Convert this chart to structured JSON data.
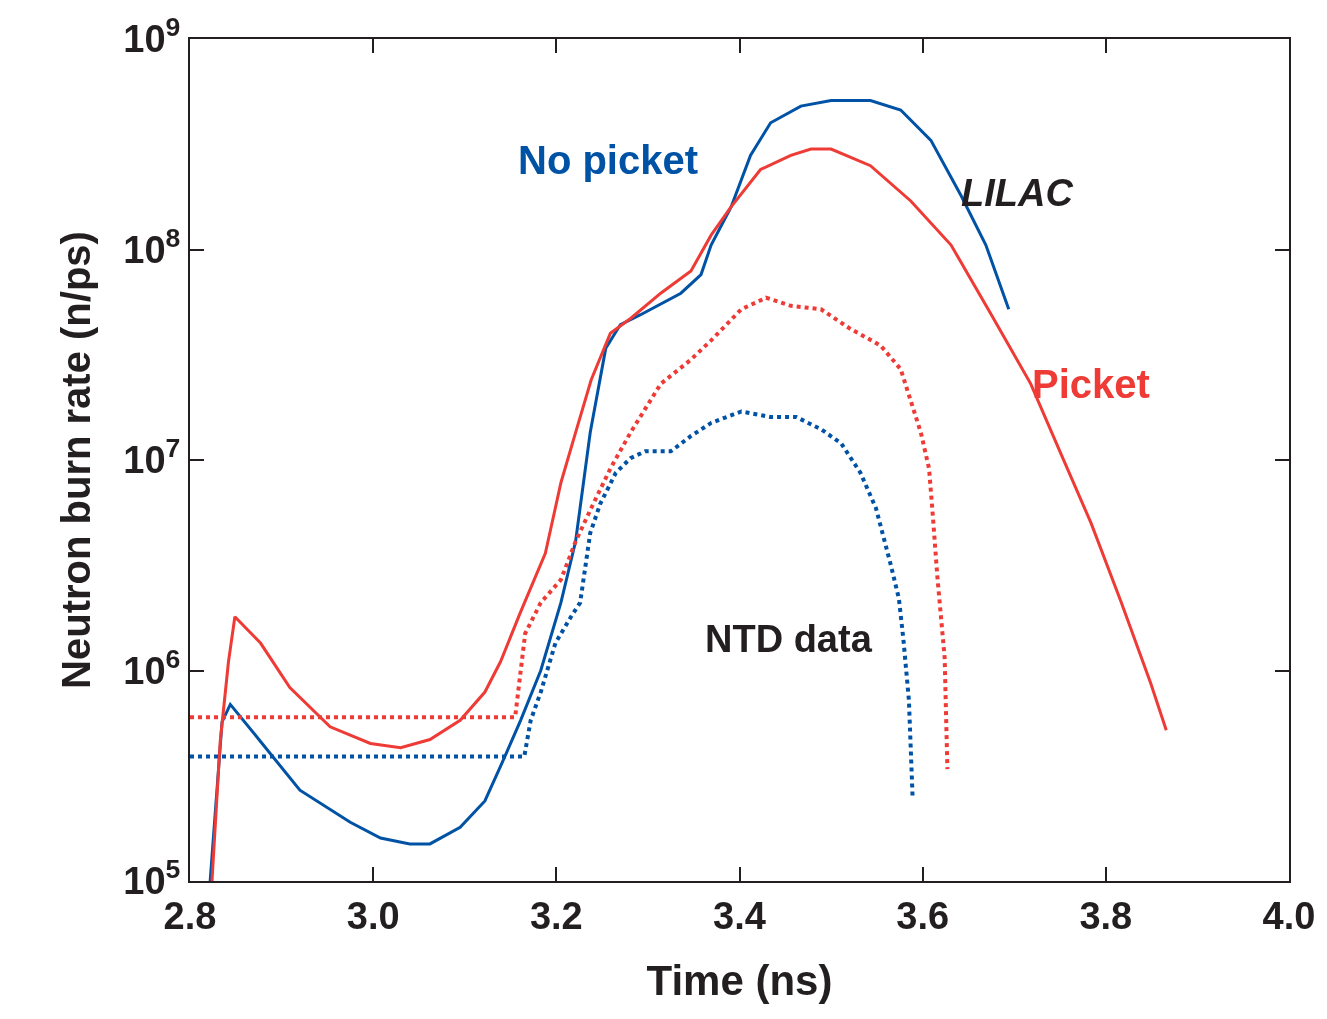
{
  "chart_data": {
    "type": "line",
    "xlabel": "Time (ns)",
    "ylabel": "Neutron burn rate (n/ps)",
    "log": "y",
    "legend": false,
    "xlim": [
      2.8,
      4.0
    ],
    "ylim": [
      100000,
      1000000000
    ],
    "xticks": [
      2.8,
      {
        "value": 3.0,
        "label": "3.0"
      },
      3.2,
      3.4,
      3.6,
      3.8,
      {
        "value": 4.0,
        "label": "4.0"
      }
    ],
    "yticks": [
      {
        "value": 100000,
        "label": "10$^{5}$"
      },
      {
        "value": 1000000,
        "label": "10$^{6}$"
      },
      {
        "value": 10000000,
        "label": "10$^{7}$"
      },
      {
        "value": 100000000,
        "label": "10$^{8}$"
      },
      {
        "value": 1000000000,
        "label": "10$^{9}$"
      }
    ],
    "annotations": [
      "LILAC",
      "NTD data"
    ],
    "series": [
      {
        "name": "No picket",
        "color": "#0052a5",
        "line_style": "solid",
        "x": [
          2.822,
          2.835,
          2.844,
          2.877,
          2.92,
          2.975,
          3.008,
          3.04,
          3.062,
          3.095,
          3.122,
          3.139,
          3.161,
          3.183,
          3.205,
          3.221,
          3.237,
          3.254,
          3.27,
          3.292,
          3.336,
          3.358,
          3.369,
          3.391,
          3.412,
          3.434,
          3.467,
          3.5,
          3.543,
          3.576,
          3.609,
          3.642,
          3.669,
          3.694
        ],
        "values": [
          100000,
          570000,
          690000,
          460000,
          270000,
          190000,
          160000,
          150000,
          150000,
          180000,
          240000,
          350000,
          580000,
          1000000,
          2100000,
          4100000,
          13500000,
          34000000,
          44000000,
          49000000,
          62000000,
          76000000,
          105000000,
          160000000,
          280000000,
          400000000,
          480000000,
          510000000,
          510000000,
          460000000,
          330000000,
          180000000,
          105000000,
          52000000
        ]
      },
      {
        "name": "Picket",
        "color": "#ee3b36",
        "line_style": "solid",
        "x": [
          2.824,
          2.833,
          2.842,
          2.849,
          2.877,
          2.909,
          2.953,
          2.997,
          3.03,
          3.062,
          3.095,
          3.122,
          3.139,
          3.161,
          3.188,
          3.205,
          3.221,
          3.238,
          3.259,
          3.281,
          3.314,
          3.347,
          3.369,
          3.391,
          3.423,
          3.456,
          3.478,
          3.5,
          3.543,
          3.587,
          3.631,
          3.675,
          3.718,
          3.751,
          3.784,
          3.817,
          3.849,
          3.866
        ],
        "values": [
          100000,
          460000,
          1100000,
          1800000,
          1350000,
          830000,
          540000,
          450000,
          430000,
          470000,
          580000,
          790000,
          1100000,
          1900000,
          3600000,
          7800000,
          13500000,
          24000000,
          40000000,
          47000000,
          62000000,
          79000000,
          117000000,
          160000000,
          240000000,
          280000000,
          300000000,
          300000000,
          250000000,
          170000000,
          105000000,
          49000000,
          23000000,
          10700000,
          5000000,
          2100000,
          870000,
          520000
        ]
      },
      {
        "color": "#ee3b36",
        "line_style": "dotted",
        "x": [
          2.8,
          3.155,
          3.166,
          3.183,
          3.205,
          3.221,
          3.238,
          3.259,
          3.281,
          3.314,
          3.347,
          3.369,
          3.402,
          3.429,
          3.456,
          3.489,
          3.521,
          3.554,
          3.576,
          3.598,
          3.607,
          3.611,
          3.616,
          3.624,
          3.627
        ],
        "values": [
          600000,
          600000,
          1500000,
          2100000,
          2700000,
          4100000,
          5900000,
          9100000,
          13500000,
          23000000,
          30000000,
          37000000,
          52000000,
          59000000,
          54000000,
          52000000,
          42000000,
          35000000,
          27000000,
          13500000,
          9100000,
          5500000,
          2800000,
          1150000,
          340000
        ]
      },
      {
        "color": "#0052a5",
        "line_style": "dotted",
        "x": [
          2.8,
          3.165,
          3.172,
          3.183,
          3.199,
          3.216,
          3.226,
          3.237,
          3.248,
          3.265,
          3.281,
          3.297,
          3.325,
          3.347,
          3.369,
          3.402,
          3.434,
          3.462,
          3.489,
          3.511,
          3.532,
          3.549,
          3.565,
          3.574,
          3.579,
          3.585,
          3.589
        ],
        "values": [
          390000,
          390000,
          580000,
          790000,
          1350000,
          1800000,
          2100000,
          4500000,
          6200000,
          8700000,
          10200000,
          11000000,
          11000000,
          13000000,
          15000000,
          17000000,
          16000000,
          16000000,
          14000000,
          12000000,
          8700000,
          5900000,
          3200000,
          2200000,
          1400000,
          720000,
          250000
        ]
      }
    ]
  }
}
